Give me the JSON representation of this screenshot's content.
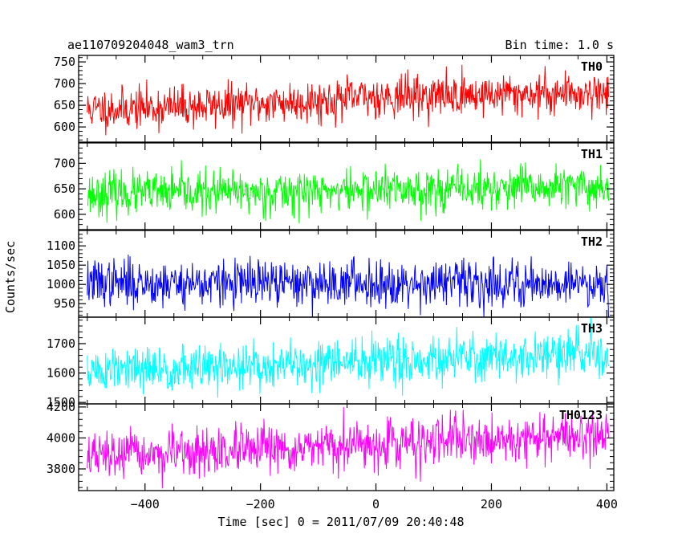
{
  "header": {
    "title": "ae110709204048_wam3_trn",
    "bin_time": "Bin time: 1.0 s"
  },
  "chart_data": {
    "type": "line",
    "title": "ae110709204048_wam3_trn",
    "xlabel": "Time [sec] 0 = 2011/07/09 20:40:48",
    "ylabel": "Counts/sec",
    "xlim": [
      -515,
      412
    ],
    "x_ticks": [
      -400,
      -200,
      0,
      200,
      400
    ],
    "x_tick_labels": [
      "−400",
      "−200",
      "0",
      "200",
      "400"
    ],
    "data_start": -500,
    "data_end": 403,
    "bin_time": 1.0,
    "grid": false,
    "legend": "none",
    "panels": [
      {
        "name": "TH0",
        "color": "#ff0000",
        "ylim": [
          565,
          765
        ],
        "y_ticks": [
          600,
          650,
          700,
          750
        ],
        "y_tick_labels": [
          "600",
          "650",
          "700",
          "750"
        ],
        "trend": {
          "x": [
            -500,
            -300,
            -100,
            0,
            100,
            200,
            403
          ],
          "y": [
            640,
            648,
            660,
            670,
            672,
            675,
            680
          ]
        },
        "noise_sd": 24,
        "seed": 11
      },
      {
        "name": "TH1",
        "color": "#00ff00",
        "ylim": [
          570,
          740
        ],
        "y_ticks": [
          600,
          650,
          700
        ],
        "y_tick_labels": [
          "600",
          "650",
          "700"
        ],
        "trend": {
          "x": [
            -500,
            -200,
            0,
            200,
            403
          ],
          "y": [
            640,
            643,
            648,
            650,
            653
          ]
        },
        "noise_sd": 21,
        "seed": 23
      },
      {
        "name": "TH2",
        "color": "#0000ff",
        "ylim": [
          915,
          1140
        ],
        "y_ticks": [
          950,
          1000,
          1050,
          1100
        ],
        "y_tick_labels": [
          "950",
          "1000",
          "1050",
          "1100"
        ],
        "trend": {
          "x": [
            -500,
            -200,
            0,
            200,
            403
          ],
          "y": [
            1005,
            1002,
            1005,
            1003,
            1004
          ]
        },
        "noise_sd": 30,
        "seed": 37
      },
      {
        "name": "TH3",
        "color": "#00ffff",
        "ylim": [
          1495,
          1790
        ],
        "y_ticks": [
          1500,
          1600,
          1700
        ],
        "y_tick_labels": [
          "1500",
          "1600",
          "1700"
        ],
        "trend": {
          "x": [
            -500,
            -300,
            -100,
            0,
            200,
            403
          ],
          "y": [
            1605,
            1615,
            1630,
            1640,
            1655,
            1665
          ]
        },
        "noise_sd": 40,
        "seed": 51
      },
      {
        "name": "TH0123",
        "color": "#ff00ff",
        "ylim": [
          3660,
          4220
        ],
        "y_ticks": [
          3800,
          4000,
          4200
        ],
        "y_tick_labels": [
          "3800",
          "4000",
          "4200"
        ],
        "trend": {
          "x": [
            -500,
            -300,
            -100,
            0,
            200,
            403
          ],
          "y": [
            3880,
            3900,
            3930,
            3960,
            3990,
            4020
          ]
        },
        "noise_sd": 75,
        "seed": 67
      }
    ]
  }
}
